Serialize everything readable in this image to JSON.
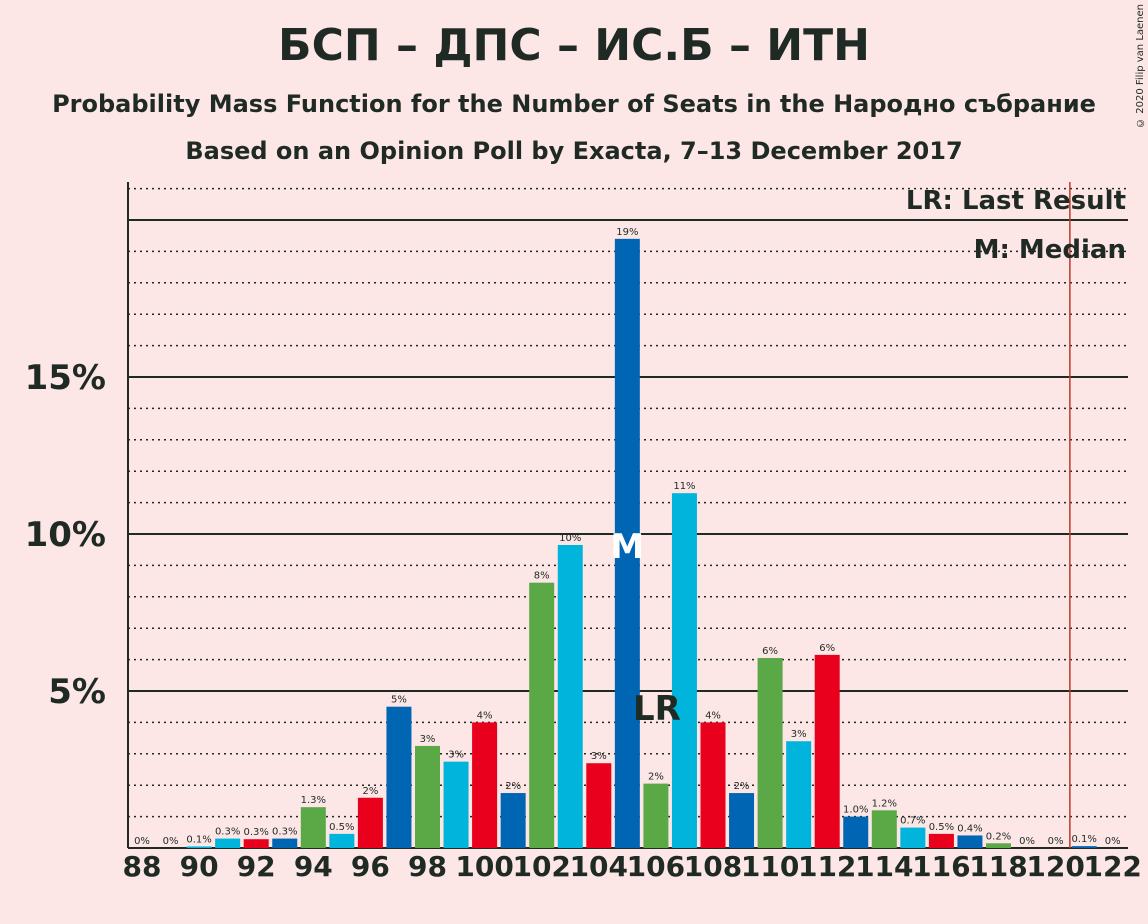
{
  "title": "БСП – ДПС – ИС.Б – ИТН",
  "subtitle1": "Probability Mass Function for the Number of Seats in the Народно събрание",
  "subtitle2": "Based on an Opinion Poll by Exacta, 7–13 December 2017",
  "copyright": "© 2020 Filip van Laenen",
  "colors": {
    "background": "#fde6e6",
    "blue": "#0066b3",
    "green": "#5aa846",
    "cyan": "#00b4dc",
    "red": "#e8001c",
    "last_result_line": "#c0392b",
    "text": "#1f2a24"
  },
  "chart_data": {
    "type": "bar",
    "xlabel": "",
    "ylabel": "",
    "ylim": [
      0,
      21
    ],
    "y_ticks": [
      {
        "value": 5,
        "label": "5%"
      },
      {
        "value": 10,
        "label": "10%"
      },
      {
        "value": 15,
        "label": "15%"
      }
    ],
    "x_tick_labels": [
      "88",
      "90",
      "92",
      "94",
      "96",
      "98",
      "100",
      "102",
      "104",
      "106",
      "108",
      "110",
      "112",
      "114",
      "116",
      "118",
      "120",
      "122"
    ],
    "gridlines": "dotted every 1%, solid at 5% steps",
    "bars": [
      {
        "seats": 88,
        "value": 0,
        "label": "0%",
        "color": "cyan"
      },
      {
        "seats": 89,
        "value": 0,
        "label": "0%",
        "color": "cyan"
      },
      {
        "seats": 90,
        "value": 0.05,
        "label": "0.1%",
        "color": "cyan"
      },
      {
        "seats": 91,
        "value": 0.3,
        "label": "0.3%",
        "color": "cyan"
      },
      {
        "seats": 92,
        "value": 0.28,
        "label": "0.3%",
        "color": "red"
      },
      {
        "seats": 93,
        "value": 0.3,
        "label": "0.3%",
        "color": "blue"
      },
      {
        "seats": 94,
        "value": 1.3,
        "label": "1.3%",
        "color": "green"
      },
      {
        "seats": 95,
        "value": 0.45,
        "label": "0.5%",
        "color": "cyan"
      },
      {
        "seats": 96,
        "value": 1.6,
        "label": "2%",
        "color": "red"
      },
      {
        "seats": 97,
        "value": 4.5,
        "label": "5%",
        "color": "blue"
      },
      {
        "seats": 98,
        "value": 3.25,
        "label": "3%",
        "color": "green"
      },
      {
        "seats": 99,
        "value": 2.75,
        "label": "3%",
        "color": "cyan"
      },
      {
        "seats": 100,
        "value": 4.0,
        "label": "4%",
        "color": "red"
      },
      {
        "seats": 101,
        "value": 1.75,
        "label": "2%",
        "color": "blue"
      },
      {
        "seats": 102,
        "value": 8.45,
        "label": "8%",
        "color": "green"
      },
      {
        "seats": 103,
        "value": 9.65,
        "label": "10%",
        "color": "cyan"
      },
      {
        "seats": 104,
        "value": 2.7,
        "label": "3%",
        "color": "red"
      },
      {
        "seats": 105,
        "value": 19.4,
        "label": "19%",
        "color": "blue"
      },
      {
        "seats": 106,
        "value": 2.05,
        "label": "2%",
        "color": "green"
      },
      {
        "seats": 107,
        "value": 11.3,
        "label": "11%",
        "color": "cyan"
      },
      {
        "seats": 108,
        "value": 4.0,
        "label": "4%",
        "color": "red"
      },
      {
        "seats": 109,
        "value": 1.75,
        "label": "2%",
        "color": "blue"
      },
      {
        "seats": 110,
        "value": 6.05,
        "label": "6%",
        "color": "green"
      },
      {
        "seats": 111,
        "value": 3.4,
        "label": "3%",
        "color": "cyan"
      },
      {
        "seats": 112,
        "value": 6.15,
        "label": "6%",
        "color": "red"
      },
      {
        "seats": 113,
        "value": 1.0,
        "label": "1.0%",
        "color": "blue"
      },
      {
        "seats": 114,
        "value": 1.2,
        "label": "1.2%",
        "color": "green"
      },
      {
        "seats": 115,
        "value": 0.65,
        "label": "0.7%",
        "color": "cyan"
      },
      {
        "seats": 116,
        "value": 0.45,
        "label": "0.5%",
        "color": "red"
      },
      {
        "seats": 117,
        "value": 0.4,
        "label": "0.4%",
        "color": "blue"
      },
      {
        "seats": 118,
        "value": 0.15,
        "label": "0.2%",
        "color": "green"
      },
      {
        "seats": 119,
        "value": 0,
        "label": "0%",
        "color": "cyan"
      },
      {
        "seats": 120,
        "value": 0,
        "label": "0%",
        "color": "red"
      },
      {
        "seats": 121,
        "value": 0.06,
        "label": "0.1%",
        "color": "blue"
      },
      {
        "seats": 122,
        "value": 0,
        "label": "0%",
        "color": "green"
      }
    ],
    "median": {
      "seats": 105,
      "marker": "M"
    },
    "last_result": {
      "seats": 106,
      "marker": "LR"
    },
    "last_result_line_seats": 120.5,
    "legend": {
      "position": "top-right",
      "entries": [
        "LR: Last Result",
        "M: Median"
      ]
    }
  }
}
